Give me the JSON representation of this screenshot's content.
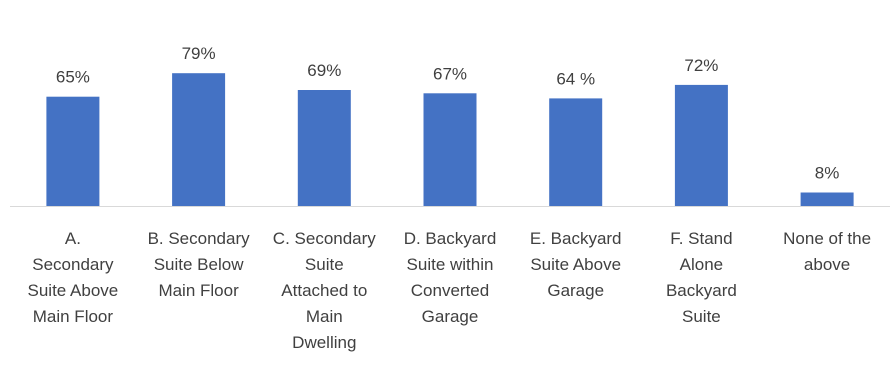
{
  "chart_data": {
    "type": "bar",
    "categories": [
      [
        "A.",
        "Secondary",
        "Suite Above",
        "Main Floor"
      ],
      [
        "B. Secondary",
        "Suite Below",
        "Main Floor"
      ],
      [
        "C. Secondary",
        "Suite",
        "Attached to",
        "Main",
        "Dwelling"
      ],
      [
        "D. Backyard",
        "Suite within",
        "Converted",
        "Garage"
      ],
      [
        "E. Backyard",
        "Suite Above",
        "Garage"
      ],
      [
        "F. Stand",
        "Alone",
        "Backyard",
        "Suite"
      ],
      [
        "None of the",
        "above"
      ]
    ],
    "values": [
      65,
      79,
      69,
      67,
      64,
      72,
      8
    ],
    "data_labels": [
      "65%",
      "79%",
      "69%",
      "67%",
      "64 %",
      "72%",
      "8%"
    ],
    "ylim": [
      0,
      100
    ],
    "bar_color": "#4472C4",
    "axis_color": "#D9D9D9",
    "grid": false,
    "legend": "none"
  }
}
